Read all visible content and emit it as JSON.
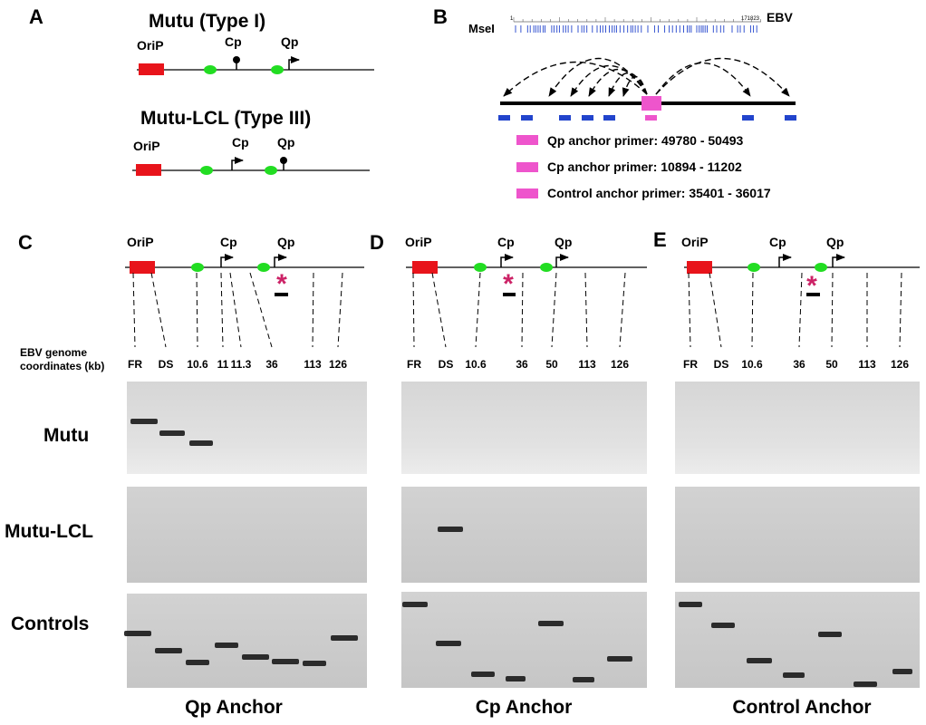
{
  "panelA": {
    "letter": "A",
    "type1_title": "Mutu  (Type I)",
    "type3_title": "Mutu-LCL (Type III)",
    "labels": {
      "orip": "OriP",
      "cp": "Cp",
      "qp": "Qp"
    }
  },
  "panelB": {
    "letter": "B",
    "ruler_start": "1",
    "ruler_end": "171823",
    "genome_label": "EBV",
    "enzyme_label": "MseI",
    "legend": [
      "Qp anchor primer: 49780 - 50493",
      "Cp anchor primer: 10894 - 11202",
      "Control anchor primer: 35401 - 36017"
    ]
  },
  "coord_axis_label": [
    "EBV genome",
    "coordinates (kb)"
  ],
  "row_labels": {
    "mutu": "Mutu",
    "lcl": "Mutu-LCL",
    "controls": "Controls"
  },
  "panelC": {
    "letter": "C",
    "title": "Qp Anchor",
    "labels": {
      "orip": "OriP",
      "cp": "Cp",
      "qp": "Qp"
    },
    "coords": [
      "FR",
      "DS",
      "10.6",
      "11",
      "11.3",
      "36",
      "113",
      "126"
    ]
  },
  "panelD": {
    "letter": "D",
    "title": "Cp Anchor",
    "labels": {
      "orip": "OriP",
      "cp": "Cp",
      "qp": "Qp"
    },
    "coords": [
      "FR",
      "DS",
      "10.6",
      "36",
      "50",
      "113",
      "126"
    ]
  },
  "panelE": {
    "letter": "E",
    "title": "Control Anchor",
    "labels": {
      "orip": "OriP",
      "cp": "Cp",
      "qp": "Qp"
    },
    "coords": [
      "FR",
      "DS",
      "10.6",
      "36",
      "50",
      "113",
      "126"
    ]
  },
  "asterisk": "*",
  "colors": {
    "orip_box": "#e8141b",
    "ds_element": "#22dd22",
    "anchor": "#ee55cc",
    "msei_site": "#2244cc",
    "asterisk": "#cc2266",
    "gel_bg": "#cfcfcf",
    "band": "#1a1a1a"
  }
}
